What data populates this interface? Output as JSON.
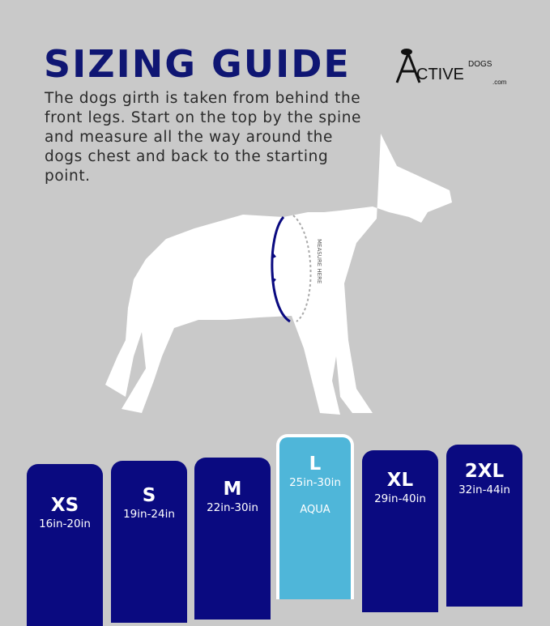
{
  "header": {
    "title": "SIZING GUIDE",
    "description": "The dogs girth is taken from behind the front legs. Start on the top by the spine and measure all the way around the dogs chest and back to the starting point."
  },
  "logo": {
    "text": "ACTIVE DOGS .com"
  },
  "diagram": {
    "measure_label": "MEASURE HERE"
  },
  "sizes": [
    {
      "size": "XS",
      "range": "16in-20in"
    },
    {
      "size": "S",
      "range": "19in-24in"
    },
    {
      "size": "M",
      "range": "22in-30in"
    },
    {
      "size": "L",
      "range": "25in-30in",
      "note": "AQUA",
      "highlighted": true
    },
    {
      "size": "XL",
      "range": "29in-40in"
    },
    {
      "size": "2XL",
      "range": "32in-44in"
    }
  ],
  "colors": {
    "navy": "#0a0a80",
    "aqua": "#4fb6d9",
    "background": "#c9c9c9"
  }
}
